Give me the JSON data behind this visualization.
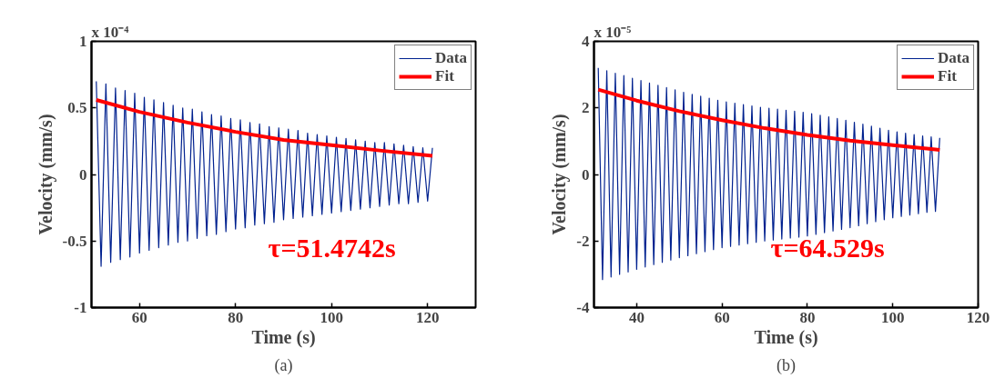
{
  "chart_data": [
    {
      "type": "line",
      "xlabel": "Time (s)",
      "ylabel": "Velocity (mm/s)",
      "xlim": [
        50,
        130
      ],
      "xticks": [
        60,
        80,
        100,
        120
      ],
      "ylim": [
        -1,
        1
      ],
      "yticks": [
        -1,
        -0.5,
        0,
        0.5,
        1
      ],
      "grid": false,
      "legend": "top right",
      "marker": "none",
      "line_style": "solid",
      "annotations": [
        "x 10⁻⁴",
        "τ=51.4742s",
        "(a)"
      ],
      "series": [
        {
          "name": "Data",
          "color": "#00218f",
          "x": [
            51,
            52,
            53,
            54,
            55,
            56,
            57,
            58,
            59,
            60,
            61,
            62,
            63,
            64,
            65,
            66,
            67,
            68,
            69,
            70,
            71,
            72,
            73,
            74,
            75,
            76,
            77,
            78,
            79,
            80,
            81,
            82,
            83,
            84,
            85,
            86,
            87,
            88,
            89,
            90,
            91,
            92,
            93,
            94,
            95,
            96,
            97,
            98,
            99,
            100,
            101,
            102,
            103,
            104,
            105,
            106,
            107,
            108,
            109,
            110,
            111,
            112,
            113,
            114,
            115,
            116,
            117,
            118,
            119,
            120,
            121
          ],
          "values": [
            0.7,
            -0.69,
            0.68,
            -0.66,
            0.65,
            -0.64,
            0.63,
            -0.62,
            0.61,
            -0.59,
            0.58,
            -0.57,
            0.56,
            -0.55,
            0.54,
            -0.53,
            0.52,
            -0.51,
            0.5,
            -0.5,
            0.49,
            -0.48,
            0.47,
            -0.46,
            0.45,
            -0.45,
            0.44,
            -0.43,
            0.42,
            -0.41,
            0.41,
            -0.4,
            0.39,
            -0.38,
            0.38,
            -0.37,
            0.36,
            -0.36,
            0.35,
            -0.34,
            0.34,
            -0.33,
            0.33,
            -0.32,
            0.31,
            -0.31,
            0.3,
            -0.3,
            0.29,
            -0.29,
            0.28,
            -0.28,
            0.27,
            -0.27,
            0.26,
            -0.26,
            0.25,
            -0.25,
            0.24,
            -0.24,
            0.24,
            -0.23,
            0.23,
            -0.22,
            0.22,
            -0.22,
            0.21,
            -0.21,
            0.2,
            -0.2,
            0.2
          ]
        },
        {
          "name": "Fit",
          "color": "#ff0000",
          "x": [
            51,
            60,
            70,
            80,
            90,
            100,
            110,
            121
          ],
          "values": [
            0.56,
            0.47,
            0.39,
            0.32,
            0.26,
            0.22,
            0.18,
            0.14
          ]
        }
      ]
    },
    {
      "type": "line",
      "xlabel": "Time (s)",
      "ylabel": "Velocity (mm/s)",
      "xlim": [
        30,
        120
      ],
      "xticks": [
        40,
        60,
        80,
        100,
        120
      ],
      "ylim": [
        -4,
        4
      ],
      "yticks": [
        -4,
        -2,
        0,
        2,
        4
      ],
      "grid": false,
      "legend": "top right",
      "marker": "none",
      "line_style": "solid",
      "annotations": [
        "x 10⁻⁵",
        "τ=64.529s",
        "(b)"
      ],
      "series": [
        {
          "name": "Data",
          "color": "#00218f",
          "x": [
            31,
            32,
            33,
            34,
            35,
            36,
            37,
            38,
            39,
            40,
            41,
            42,
            43,
            44,
            45,
            46,
            47,
            48,
            49,
            50,
            51,
            52,
            53,
            54,
            55,
            56,
            57,
            58,
            59,
            60,
            61,
            62,
            63,
            64,
            65,
            66,
            67,
            68,
            69,
            70,
            71,
            72,
            73,
            74,
            75,
            76,
            77,
            78,
            79,
            80,
            81,
            82,
            83,
            84,
            85,
            86,
            87,
            88,
            89,
            90,
            91,
            92,
            93,
            94,
            95,
            96,
            97,
            98,
            99,
            100,
            101,
            102,
            103,
            104,
            105,
            106,
            107,
            108,
            109,
            110,
            111
          ],
          "values": [
            3.2,
            -3.16,
            3.12,
            -3.08,
            3.04,
            -3.0,
            2.97,
            -2.93,
            2.89,
            -2.85,
            2.82,
            -2.78,
            2.75,
            -2.71,
            2.68,
            -2.64,
            2.61,
            -2.57,
            2.54,
            -2.5,
            2.47,
            -2.44,
            2.41,
            -2.38,
            2.35,
            -2.32,
            2.29,
            -2.26,
            2.23,
            -2.2,
            2.18,
            -2.16,
            2.14,
            -2.12,
            2.1,
            -2.08,
            2.06,
            -2.04,
            2.02,
            -2.0,
            1.99,
            -1.97,
            1.96,
            -1.94,
            1.93,
            -1.91,
            1.9,
            -1.88,
            1.87,
            -1.85,
            1.83,
            -1.8,
            1.78,
            -1.75,
            1.73,
            -1.7,
            1.68,
            -1.65,
            1.63,
            -1.6,
            1.57,
            -1.54,
            1.51,
            -1.48,
            1.45,
            -1.42,
            1.39,
            -1.36,
            1.33,
            -1.3,
            1.28,
            -1.26,
            1.24,
            -1.22,
            1.2,
            -1.18,
            1.16,
            -1.14,
            1.13,
            -1.11,
            1.1
          ]
        },
        {
          "name": "Fit",
          "color": "#ff0000",
          "x": [
            31,
            40,
            50,
            60,
            70,
            80,
            90,
            100,
            111
          ],
          "values": [
            2.55,
            2.22,
            1.9,
            1.63,
            1.39,
            1.19,
            1.02,
            0.88,
            0.74
          ]
        }
      ]
    }
  ]
}
